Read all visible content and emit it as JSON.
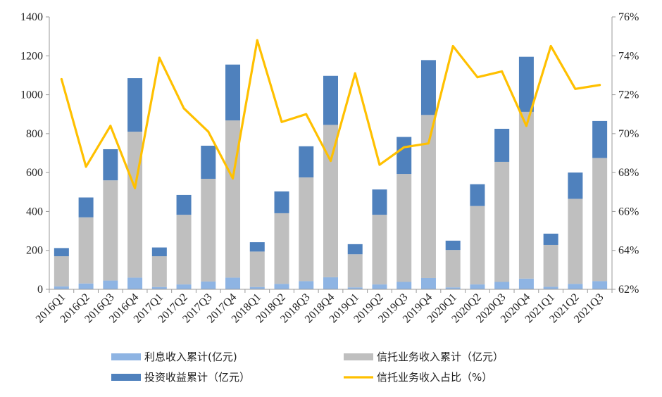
{
  "chart_data": {
    "type": "bar",
    "stacked": true,
    "categories": [
      "2016Q1",
      "2016Q2",
      "2016Q3",
      "2016Q4",
      "2017Q1",
      "2017Q2",
      "2017Q3",
      "2017Q4",
      "2018Q1",
      "2018Q2",
      "2018Q3",
      "2018Q4",
      "2019Q1",
      "2019Q2",
      "2019Q3",
      "2019Q4",
      "2020Q1",
      "2020Q2",
      "2020Q3",
      "2020Q4",
      "2021Q1",
      "2021Q2",
      "2021Q3"
    ],
    "series": [
      {
        "name": "利息收入累计(亿元)",
        "kind": "bar",
        "axis": "left",
        "color": "#8EB4E3",
        "values": [
          15,
          30,
          45,
          60,
          12,
          25,
          40,
          60,
          12,
          28,
          42,
          62,
          10,
          25,
          38,
          58,
          10,
          25,
          38,
          55,
          13,
          28,
          42
        ]
      },
      {
        "name": "信托业务收入累计（亿元）",
        "kind": "bar",
        "axis": "left",
        "color": "#BFBFBF",
        "values": [
          155,
          340,
          515,
          750,
          158,
          358,
          528,
          808,
          182,
          363,
          533,
          783,
          170,
          358,
          555,
          838,
          192,
          403,
          617,
          857,
          215,
          437,
          633
        ]
      },
      {
        "name": "投资收益累计（亿元）",
        "kind": "bar",
        "axis": "left",
        "color": "#4F81BD",
        "values": [
          42,
          102,
          160,
          275,
          45,
          102,
          170,
          287,
          48,
          112,
          160,
          252,
          52,
          130,
          190,
          282,
          48,
          112,
          170,
          283,
          58,
          135,
          190
        ]
      },
      {
        "name": "信托业务收入占比（%）",
        "kind": "line",
        "axis": "right",
        "color": "#FFC000",
        "values": [
          72.8,
          68.3,
          70.4,
          67.2,
          73.9,
          71.3,
          70.1,
          67.7,
          74.8,
          70.6,
          71.0,
          68.6,
          73.1,
          68.4,
          69.3,
          69.5,
          74.5,
          72.9,
          73.2,
          70.4,
          74.5,
          72.3,
          72.5
        ]
      }
    ],
    "y_left": {
      "min": 0,
      "max": 1400,
      "ticks": [
        0,
        200,
        400,
        600,
        800,
        1000,
        1200,
        1400
      ]
    },
    "y_right": {
      "min": 62,
      "max": 76,
      "ticks": [
        "62%",
        "64%",
        "66%",
        "68%",
        "70%",
        "72%",
        "74%",
        "76%"
      ]
    },
    "grid": false,
    "legend_position": "bottom"
  }
}
